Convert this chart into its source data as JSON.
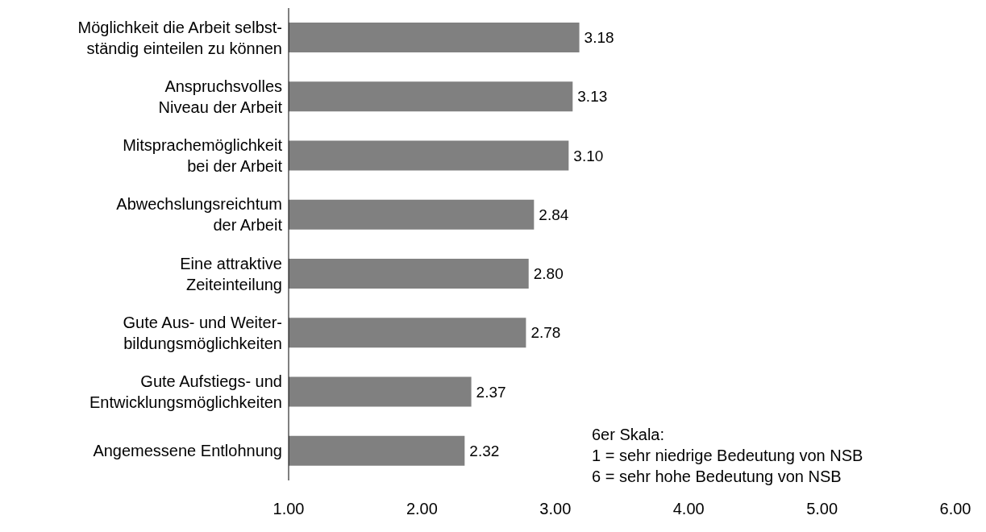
{
  "chart_data": {
    "type": "bar",
    "orientation": "horizontal",
    "categories": [
      "Möglichkeit die Arbeit selbst-\nständig einteilen zu können",
      "Anspruchsvolles\nNiveau der Arbeit",
      "Mitsprachemöglichkeit\nbei der Arbeit",
      "Abwechslungsreichtum\nder Arbeit",
      "Eine attraktive\nZeiteinteilung",
      "Gute Aus- und Weiter-\nbildungsmöglichkeiten",
      "Gute Aufstiegs- und\nEntwicklungsmöglichkeiten",
      "Angemessene Entlohnung"
    ],
    "values": [
      3.18,
      3.13,
      3.1,
      2.84,
      2.8,
      2.78,
      2.37,
      2.32
    ],
    "value_labels": [
      "3.18",
      "3.13",
      "3.10",
      "2.84",
      "2.80",
      "2.78",
      "2.37",
      "2.32"
    ],
    "color": "#808080",
    "xlim": [
      1,
      6
    ],
    "xticks": [
      {
        "value": 1,
        "label": "1.00"
      },
      {
        "value": 2,
        "label": "2.00"
      },
      {
        "value": 3,
        "label": "3.00"
      },
      {
        "value": 4,
        "label": "4.00"
      },
      {
        "value": 5,
        "label": "5.00"
      },
      {
        "value": 6,
        "label": "6.00"
      }
    ],
    "grid": false,
    "legend": false,
    "annotations": [
      "6er Skala:\n1 = sehr niedrige Bedeutung von NSB\n6 = sehr hohe Bedeutung von NSB"
    ]
  }
}
